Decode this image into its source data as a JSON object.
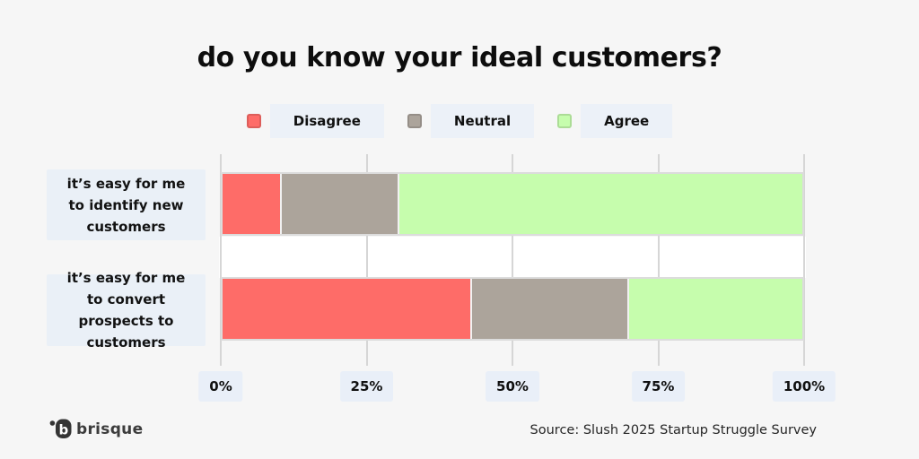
{
  "title": "do you know your ideal customers?",
  "footer": {
    "brand": "brisque",
    "source": "Source: Slush 2025 Startup Struggle Survey"
  },
  "colors": {
    "page_bg": "#f6f6f6",
    "chip_bg": "#ecf1f8",
    "label_bg": "#eaf0f7",
    "gridline": "#d6d6d6",
    "bar_border": "#dcdcdc",
    "disagree": "#FE6C68",
    "neutral": "#ACA49B",
    "agree": "#C6FDAD"
  },
  "chart_data": {
    "type": "bar",
    "orientation": "horizontal",
    "stacked": true,
    "title": "do you know your ideal customers?",
    "categories": [
      "it’s easy for me to identify new customers",
      "it’s easy for me to convert prospects to customers"
    ],
    "series": [
      {
        "name": "Disagree",
        "color": "#FE6C68",
        "values": [
          10,
          43
        ]
      },
      {
        "name": "Neutral",
        "color": "#ACA49B",
        "values": [
          20,
          27
        ]
      },
      {
        "name": "Agree",
        "color": "#C6FDAD",
        "values": [
          70,
          30
        ]
      }
    ],
    "x_ticks": [
      "0%",
      "25%",
      "50%",
      "75%",
      "100%"
    ],
    "xlim": [
      0,
      100
    ],
    "grid": "vertical",
    "legend_position": "top"
  }
}
